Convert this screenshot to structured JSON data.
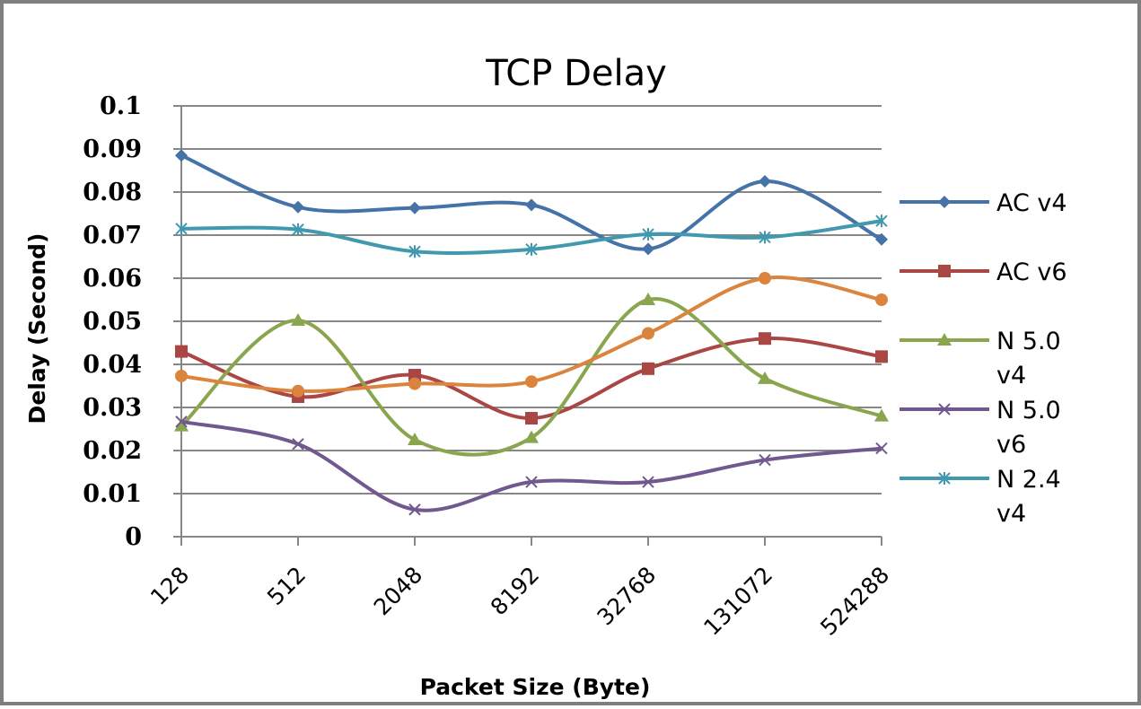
{
  "chart_data": {
    "type": "line",
    "title": "TCP Delay",
    "xlabel": "Packet Size (Byte)",
    "ylabel": "Delay (Second)",
    "ylim": [
      0,
      0.1
    ],
    "yticks": [
      "0",
      "0.01",
      "0.02",
      "0.03",
      "0.04",
      "0.05",
      "0.06",
      "0.07",
      "0.08",
      "0.09",
      "0.1"
    ],
    "categories": [
      "128",
      "512",
      "2048",
      "8192",
      "32768",
      "131072",
      "524288"
    ],
    "grid": true,
    "legend_position": "right",
    "series": [
      {
        "name": "AC v4",
        "label_lines": [
          "AC v4"
        ],
        "color": "#4572A7",
        "marker": "diamond",
        "values": [
          0.0885,
          0.0765,
          0.0763,
          0.077,
          0.0668,
          0.0825,
          0.069
        ]
      },
      {
        "name": "AC v6",
        "label_lines": [
          "AC v6"
        ],
        "color": "#AA4643",
        "marker": "square",
        "values": [
          0.043,
          0.0325,
          0.0375,
          0.0275,
          0.039,
          0.046,
          0.0418
        ]
      },
      {
        "name": "N 5.0 v4",
        "label_lines": [
          "N 5.0",
          "v4"
        ],
        "color": "#89A54E",
        "marker": "triangle",
        "values": [
          0.0257,
          0.0502,
          0.0225,
          0.023,
          0.055,
          0.0367,
          0.028
        ]
      },
      {
        "name": "N 5.0 v6",
        "label_lines": [
          "N 5.0",
          "v6"
        ],
        "color": "#71588F",
        "marker": "x",
        "values": [
          0.0267,
          0.0215,
          0.0063,
          0.0127,
          0.0127,
          0.0178,
          0.0205
        ]
      },
      {
        "name": "N 2.4 v4",
        "label_lines": [
          "N 2.4",
          "v4"
        ],
        "color": "#4198AF",
        "marker": "star",
        "values": [
          0.0715,
          0.0713,
          0.0662,
          0.0667,
          0.0702,
          0.0695,
          0.0733
        ]
      },
      {
        "name": "",
        "label_lines": [],
        "color": "#DB843D",
        "marker": "circle",
        "values": [
          0.0373,
          0.0338,
          0.0355,
          0.036,
          0.0472,
          0.06,
          0.055
        ]
      }
    ]
  }
}
